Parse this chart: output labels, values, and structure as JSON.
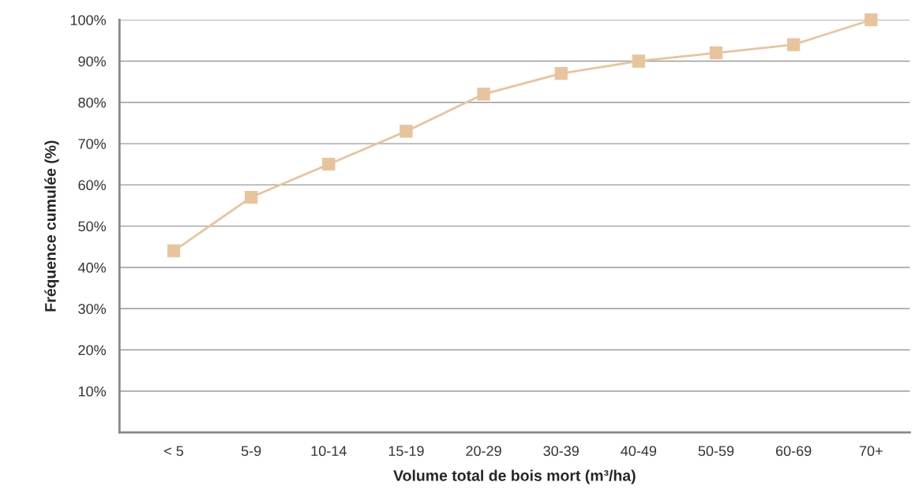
{
  "chart_data": {
    "type": "line",
    "xlabel": "Volume total de bois mort (m³/ha)",
    "ylabel": "Fréquence cumulée (%)",
    "categories": [
      "< 5",
      "5-9",
      "10-14",
      "15-19",
      "20-29",
      "30-39",
      "40-49",
      "50-59",
      "60-69",
      "70+"
    ],
    "series": [
      {
        "color": "#e8c49c",
        "values": [
          44,
          57,
          65,
          73,
          82,
          87,
          90,
          92,
          94,
          100
        ]
      }
    ],
    "ylim": [
      0,
      100
    ],
    "yticks": [
      {
        "value": 10,
        "label": "10%"
      },
      {
        "value": 20,
        "label": "20%"
      },
      {
        "value": 30,
        "label": "30%"
      },
      {
        "value": 40,
        "label": "40%"
      },
      {
        "value": 50,
        "label": "50%"
      },
      {
        "value": 60,
        "label": "60%"
      },
      {
        "value": 70,
        "label": "70%"
      },
      {
        "value": 80,
        "label": "80%"
      },
      {
        "value": 90,
        "label": "90%"
      },
      {
        "value": 100,
        "label": "100%"
      }
    ],
    "grid": "y",
    "marker": "square",
    "line_style": "solid"
  }
}
